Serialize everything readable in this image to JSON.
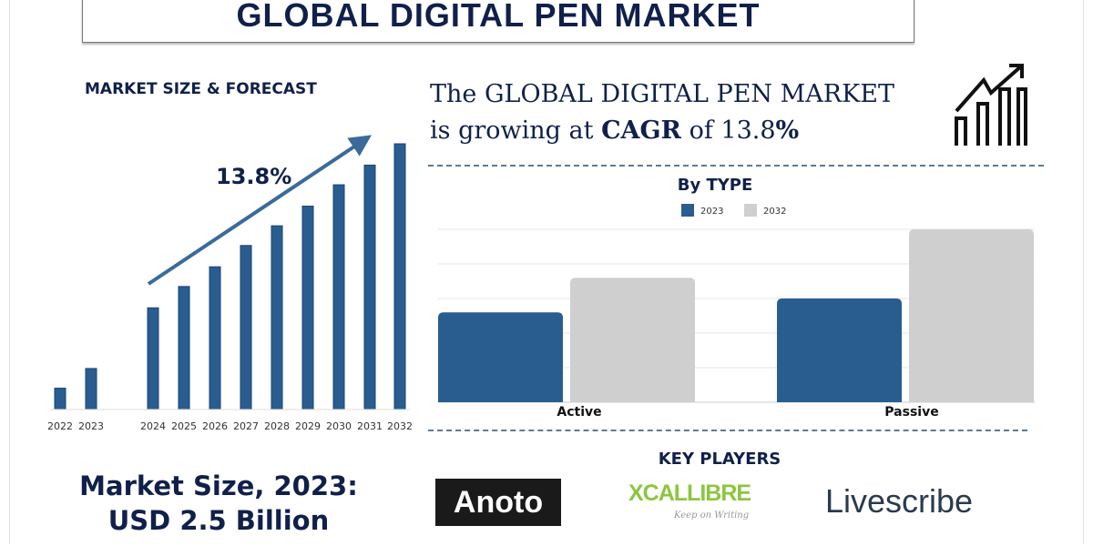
{
  "title": "GLOBAL DIGITAL PEN MARKET",
  "left_section_title": "MARKET SIZE & FORECAST",
  "headline": {
    "line1": "The GLOBAL DIGITAL PEN MARKET",
    "line2_prefix": "is growing at ",
    "line2_bold": "CAGR",
    "line2_mid": " of 13.8",
    "line2_pct": "%"
  },
  "market_size": {
    "line1": "Market Size, 2023:",
    "line2": "USD 2.5 Billion"
  },
  "key_players_title": "KEY PLAYERS",
  "key_players": [
    "Anoto",
    "XCALLIBRE",
    "Livescribe"
  ],
  "xcallibre_tagline": "Keep on Writing",
  "colors": {
    "navy": "#10204a",
    "bar_blue": "#2a5d8f",
    "bar_grey": "#cfcfcf",
    "xcallibre_green": "#8cc63f"
  },
  "icons": [
    "growth-chart-arrow-icon"
  ],
  "chart_data": [
    {
      "type": "bar",
      "title": "",
      "categories": [
        "2022",
        "2023",
        "2024",
        "2025",
        "2026",
        "2027",
        "2028",
        "2029",
        "2030",
        "2031",
        "2032"
      ],
      "values": [
        1.3,
        2.5,
        6.2,
        7.5,
        8.7,
        10.0,
        11.2,
        12.4,
        13.7,
        14.9,
        16.2
      ],
      "annotation": "13.8%",
      "ylim": [
        0,
        17
      ],
      "grid": false,
      "unit": "USD Billion"
    },
    {
      "type": "bar",
      "title": "By TYPE",
      "categories": [
        "Active",
        "Passive"
      ],
      "series": [
        {
          "name": "2023",
          "values": [
            2.6,
            3.0
          ]
        },
        {
          "name": "2032",
          "values": [
            3.6,
            5.0
          ]
        }
      ],
      "ylim": [
        0,
        5
      ],
      "grid": true,
      "legend": "top-center"
    }
  ]
}
